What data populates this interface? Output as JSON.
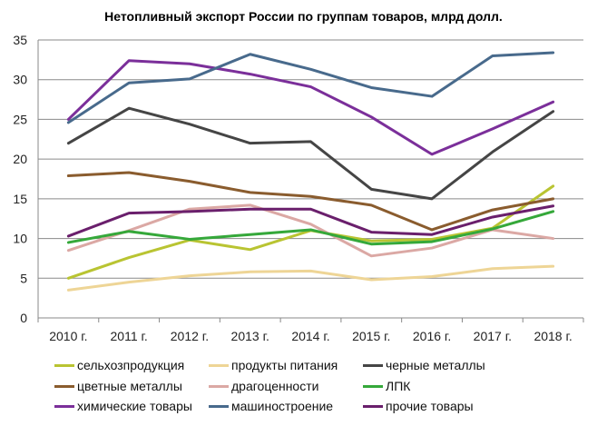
{
  "chart_data": {
    "type": "line",
    "title": "Нетопливный экспорт России по группам товаров, млрд долл.",
    "categories": [
      "2010 г.",
      "2011 г.",
      "2012 г.",
      "2013 г.",
      "2014 г.",
      "2015 г.",
      "2016 г.",
      "2017 г.",
      "2018 г."
    ],
    "ylim": [
      0,
      35
    ],
    "yticks": [
      "0",
      "5",
      "10",
      "15",
      "20",
      "25",
      "30",
      "35"
    ],
    "grid": true,
    "legend_placement": "bottom",
    "series": [
      {
        "name": "сельхозпродукция",
        "color": "#b9c432",
        "values": [
          5.0,
          7.6,
          9.8,
          8.6,
          11.0,
          9.7,
          9.9,
          11.3,
          16.6
        ]
      },
      {
        "name": "продукты питания",
        "color": "#eed596",
        "values": [
          3.5,
          4.5,
          5.3,
          5.8,
          5.9,
          4.8,
          5.2,
          6.2,
          6.5
        ]
      },
      {
        "name": "черные металлы",
        "color": "#454545",
        "values": [
          22.0,
          26.4,
          24.4,
          22.0,
          22.2,
          16.2,
          15.0,
          20.9,
          26.0
        ]
      },
      {
        "name": "цветные металлы",
        "color": "#8a5c2e",
        "values": [
          17.9,
          18.3,
          17.2,
          15.8,
          15.3,
          14.2,
          11.1,
          13.6,
          15.0
        ]
      },
      {
        "name": "драгоценности",
        "color": "#dba8a4",
        "values": [
          8.5,
          11.0,
          13.7,
          14.2,
          11.8,
          7.8,
          8.8,
          11.1,
          10.0
        ]
      },
      {
        "name": "ЛПК",
        "color": "#35a83a",
        "values": [
          9.5,
          10.9,
          9.9,
          10.5,
          11.1,
          9.3,
          9.6,
          11.2,
          13.4
        ]
      },
      {
        "name": "химические товары",
        "color": "#7b2f9a",
        "values": [
          25.0,
          32.4,
          32.0,
          30.7,
          29.1,
          25.3,
          20.6,
          23.8,
          27.2
        ]
      },
      {
        "name": "машиностроение",
        "color": "#486a8c",
        "values": [
          24.6,
          29.6,
          30.1,
          33.2,
          31.3,
          29.0,
          27.9,
          33.0,
          33.4
        ]
      },
      {
        "name": "прочие товары",
        "color": "#6a1f6c",
        "values": [
          10.3,
          13.2,
          13.4,
          13.7,
          13.7,
          10.8,
          10.5,
          12.7,
          14.1
        ]
      }
    ]
  }
}
